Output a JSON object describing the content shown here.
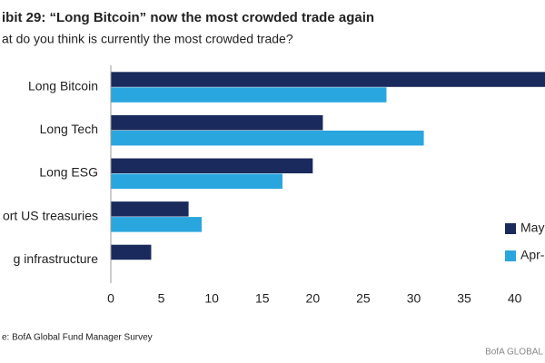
{
  "chart_data": {
    "type": "bar",
    "orientation": "horizontal",
    "title": "ibit 29: “Long Bitcoin” now the most crowded trade again",
    "subtitle": "at do you think is currently the most crowded trade?",
    "categories": [
      "Long Bitcoin",
      "Long Tech",
      "Long ESG",
      "ort US treasuries",
      "g infrastructure"
    ],
    "series": [
      {
        "name": "May",
        "color": "#1b2a5c",
        "values": [
          43,
          21,
          20,
          7.7,
          4
        ]
      },
      {
        "name": "Apr-",
        "color": "#2aa6df",
        "values": [
          27.3,
          31,
          17,
          9,
          null
        ]
      }
    ],
    "xlim": [
      0,
      43
    ],
    "xticks": [
      0,
      5,
      10,
      15,
      20,
      25,
      30,
      35,
      40
    ],
    "legend": "right",
    "source": "e: BofA Global Fund Manager Survey",
    "brand": "BofA GLOBAL"
  }
}
